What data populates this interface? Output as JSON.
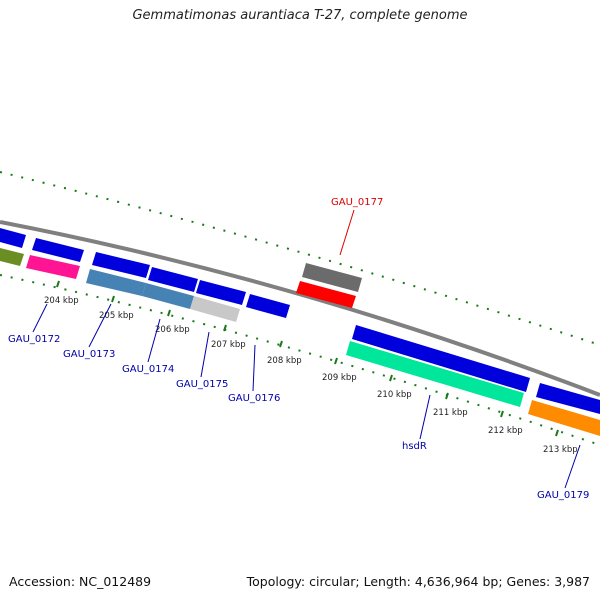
{
  "title": "Gemmatimonas aurantiaca T-27, complete genome",
  "footer": {
    "accession": "Accession: NC_012489",
    "summary": "Topology: circular; Length: 4,636,964 bp; Genes: 3,987"
  },
  "colors": {
    "backbone": "#808080",
    "tick": "#1a7a1a",
    "label_blue": "#0000aa",
    "label_red": "#dd0000"
  },
  "ticks": [
    "204 kbp",
    "205 kbp",
    "206 kbp",
    "207 kbp",
    "208 kbp",
    "209 kbp",
    "210 kbp",
    "211 kbp",
    "212 kbp",
    "213 kbp"
  ],
  "gene_labels": [
    {
      "text": "GAU_0172",
      "color": "#0000aa"
    },
    {
      "text": "GAU_0173",
      "color": "#0000aa"
    },
    {
      "text": "GAU_0174",
      "color": "#0000aa"
    },
    {
      "text": "GAU_0175",
      "color": "#0000aa"
    },
    {
      "text": "GAU_0176",
      "color": "#0000aa"
    },
    {
      "text": "GAU_0177",
      "color": "#dd0000"
    },
    {
      "text": "hsdR",
      "color": "#0000aa"
    },
    {
      "text": "GAU_0179",
      "color": "#0000aa"
    }
  ]
}
